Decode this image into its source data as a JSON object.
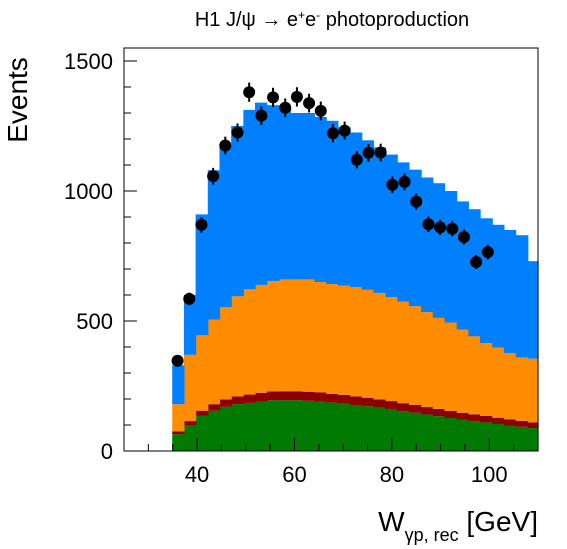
{
  "chart_data": {
    "type": "bar",
    "title_parts": {
      "pre": "H1 J/ψ → e",
      "sup1": "+",
      "mid": "e",
      "sup2": "-",
      "post": " photoproduction"
    },
    "ylabel": "Events",
    "xlabel_parts": {
      "main": "W",
      "sub": "γp, rec",
      "unit": " [GeV]"
    },
    "xlim": [
      25,
      110
    ],
    "ylim": [
      0,
      1550
    ],
    "x_ticks": [
      40,
      60,
      80,
      100
    ],
    "y_ticks": [
      0,
      500,
      1000,
      1500
    ],
    "stack_bin_edges": [
      34.9,
      37.3,
      39.7,
      42.2,
      44.6,
      47.0,
      49.5,
      51.9,
      54.3,
      56.8,
      59.2,
      61.6,
      64.1,
      66.5,
      68.9,
      71.4,
      73.8,
      76.2,
      78.7,
      81.1,
      83.5,
      86.0,
      88.4,
      90.8,
      93.3,
      95.7,
      98.1,
      100.6,
      103.0,
      105.4,
      107.9,
      110.0
    ],
    "stack_series": [
      {
        "key": "green",
        "color": "#007a00",
        "values": [
          65,
          100,
          135,
          155,
          170,
          180,
          185,
          190,
          195,
          195,
          195,
          193,
          190,
          186,
          182,
          177,
          172,
          166,
          160,
          153,
          147,
          140,
          134,
          127,
          121,
          115,
          110,
          104,
          98,
          93,
          88
        ]
      },
      {
        "key": "darkred",
        "color": "#8b0000",
        "values": [
          10,
          15,
          20,
          25,
          28,
          30,
          32,
          34,
          34,
          35,
          35,
          35,
          35,
          34,
          34,
          33,
          33,
          32,
          32,
          31,
          30,
          29,
          28,
          27,
          26,
          26,
          25,
          24,
          24,
          23,
          22
        ]
      },
      {
        "key": "orange",
        "color": "#ff8c00",
        "values": [
          105,
          255,
          290,
          325,
          355,
          385,
          405,
          415,
          425,
          430,
          430,
          432,
          425,
          422,
          420,
          420,
          415,
          410,
          400,
          390,
          380,
          365,
          350,
          340,
          320,
          300,
          280,
          270,
          255,
          244,
          245
        ]
      },
      {
        "key": "blue",
        "color": "#0080ff",
        "values": [
          150,
          230,
          465,
          575,
          620,
          655,
          690,
          701,
          676,
          660,
          640,
          640,
          635,
          628,
          609,
          595,
          575,
          560,
          548,
          536,
          525,
          518,
          518,
          506,
          493,
          489,
          480,
          472,
          473,
          470,
          375
        ]
      }
    ],
    "data_points": {
      "color": "#000000",
      "x": [
        36.0,
        38.4,
        40.9,
        43.3,
        45.8,
        48.3,
        50.7,
        53.2,
        55.6,
        58.1,
        60.5,
        63.0,
        65.4,
        67.9,
        70.3,
        72.8,
        75.2,
        77.7,
        80.1,
        82.6,
        85.0,
        87.5,
        89.9,
        92.4,
        94.8,
        97.3,
        99.7,
        102.2,
        104.6,
        107.1
      ],
      "y": [
        347,
        585,
        870,
        1057,
        1175,
        1225,
        1380,
        1290,
        1360,
        1320,
        1362,
        1338,
        1308,
        1222,
        1232,
        1120,
        1147,
        1148,
        1024,
        1035,
        959,
        872,
        860,
        855,
        823,
        727,
        765,
        0,
        0,
        0
      ],
      "yerr": [
        20,
        24,
        30,
        32,
        34,
        35,
        37,
        36,
        37,
        36,
        37,
        36,
        36,
        35,
        35,
        33,
        34,
        34,
        32,
        32,
        31,
        30,
        29,
        29,
        29,
        27,
        28,
        0,
        0,
        0
      ],
      "n_visible": 27
    }
  }
}
